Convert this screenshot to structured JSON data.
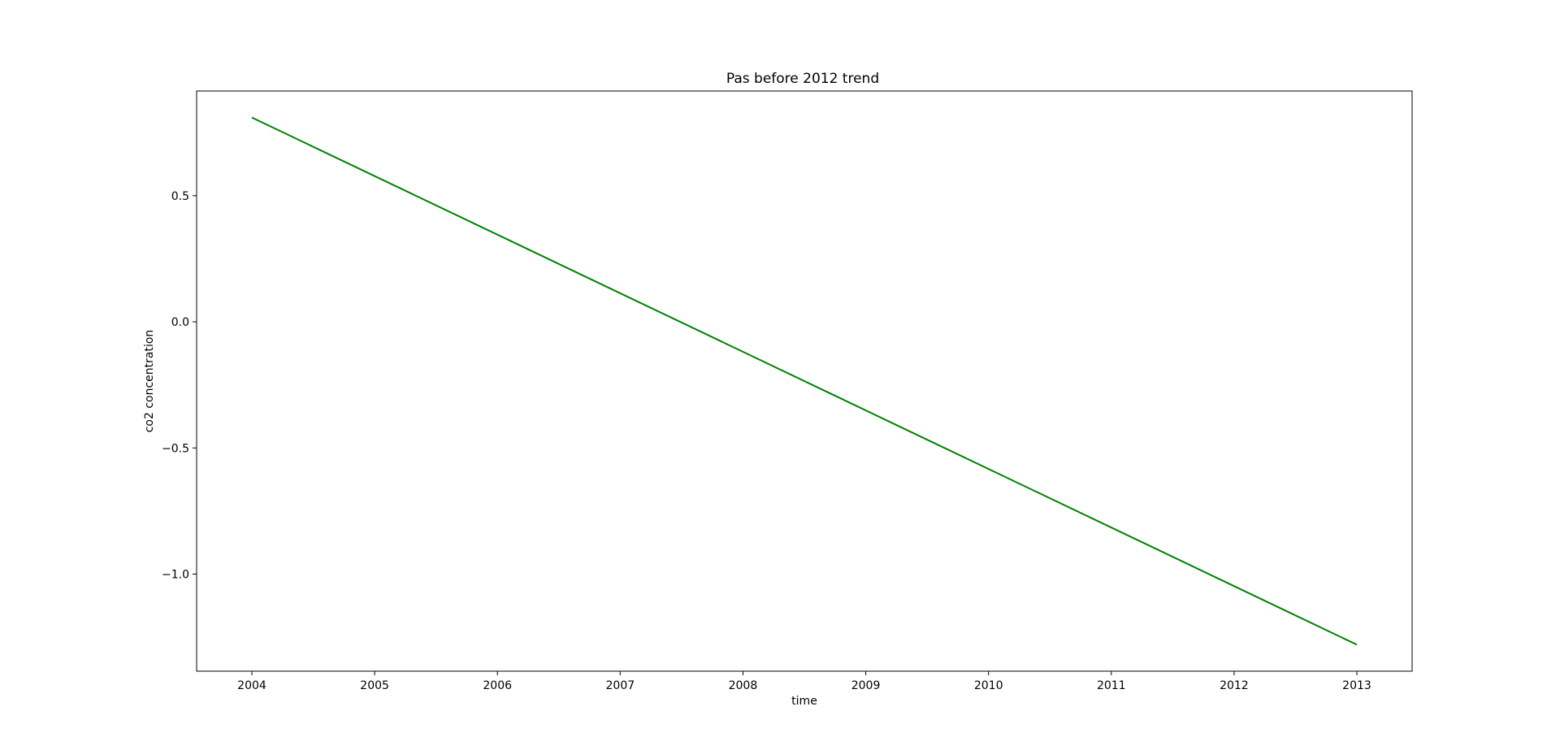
{
  "chart_data": {
    "type": "line",
    "title": "Pas before 2012 trend",
    "xlabel": "time",
    "ylabel": "co2 concentration",
    "x": [
      "2004",
      "2013"
    ],
    "series": [
      {
        "color": "#008000",
        "values": [
          0.81,
          -1.28
        ]
      }
    ],
    "xlim": [
      2003.55,
      2013.45
    ],
    "ylim": [
      -1.385,
      0.915
    ],
    "x_ticks": [
      2004,
      2005,
      2006,
      2007,
      2008,
      2009,
      2010,
      2011,
      2012,
      2013
    ],
    "x_tick_labels": [
      "2004",
      "2005",
      "2006",
      "2007",
      "2008",
      "2009",
      "2010",
      "2011",
      "2012",
      "2013"
    ],
    "y_ticks": [
      0.5,
      0.0,
      -0.5,
      -1.0
    ],
    "y_tick_labels": [
      "0.5",
      "0.0",
      "−0.5",
      "−1.0"
    ],
    "grid": false,
    "legend": "none"
  }
}
